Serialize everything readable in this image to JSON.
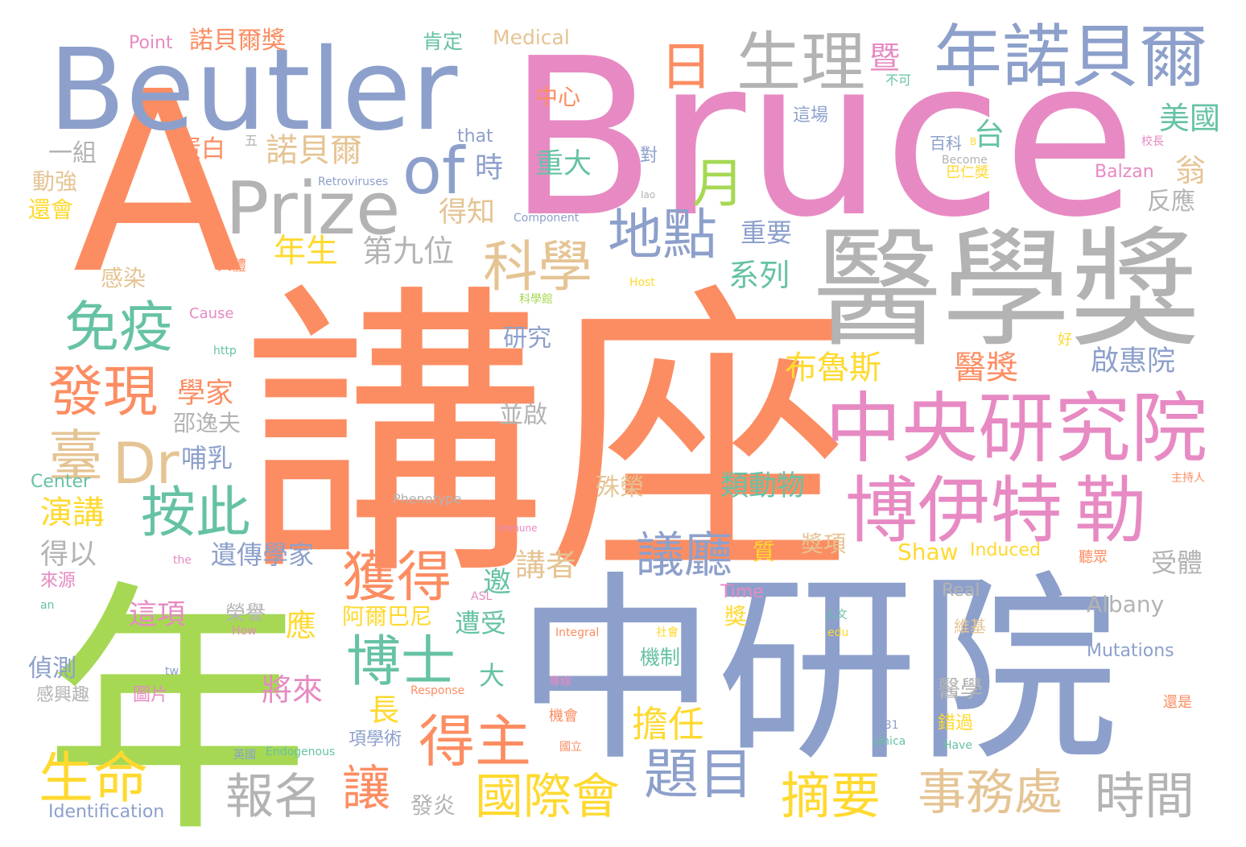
{
  "palette": {
    "orange": "#fc8d62",
    "blue": "#8da0cb",
    "pink": "#e78ac3",
    "green": "#a6d854",
    "yellow": "#ffd92f",
    "tan": "#e5c494",
    "gray": "#b3b3b3",
    "teal": "#66c2a5"
  },
  "words": [
    {
      "text": "講座",
      "color": "orange"
    },
    {
      "text": "Bruce",
      "color": "pink"
    },
    {
      "text": "中研院",
      "color": "blue"
    },
    {
      "text": "年",
      "color": "green"
    },
    {
      "text": "A",
      "color": "orange"
    },
    {
      "text": "醫學獎",
      "color": "gray"
    },
    {
      "text": "Beutler",
      "color": "blue"
    },
    {
      "text": "中央研究院",
      "color": "pink"
    },
    {
      "text": "博伊特",
      "color": "pink"
    },
    {
      "text": "勒",
      "color": "pink"
    },
    {
      "text": "年諾貝爾",
      "color": "blue"
    },
    {
      "text": "Prize",
      "color": "gray"
    },
    {
      "text": "生理",
      "color": "gray"
    },
    {
      "text": "of",
      "color": "blue"
    },
    {
      "text": "月",
      "color": "green"
    },
    {
      "text": "日",
      "color": "orange"
    },
    {
      "text": "Dr",
      "color": "tan"
    },
    {
      "text": "科學",
      "color": "tan"
    },
    {
      "text": "地點",
      "color": "blue"
    },
    {
      "text": "免疫",
      "color": "teal"
    },
    {
      "text": "發現",
      "color": "orange"
    },
    {
      "text": "臺",
      "color": "tan"
    },
    {
      "text": "按此",
      "color": "teal"
    },
    {
      "text": "獲得",
      "color": "orange"
    },
    {
      "text": "得主",
      "color": "orange"
    },
    {
      "text": "博士",
      "color": "teal"
    },
    {
      "text": "議廳",
      "color": "blue"
    },
    {
      "text": "國際會",
      "color": "yellow"
    },
    {
      "text": "題目",
      "color": "blue"
    },
    {
      "text": "摘要",
      "color": "yellow"
    },
    {
      "text": "事務處",
      "color": "tan"
    },
    {
      "text": "時間",
      "color": "gray"
    },
    {
      "text": "生命",
      "color": "yellow"
    },
    {
      "text": "報名",
      "color": "gray"
    },
    {
      "text": "讓",
      "color": "orange"
    },
    {
      "text": "擔任",
      "color": "yellow"
    },
    {
      "text": "布魯斯",
      "color": "yellow"
    },
    {
      "text": "醫獎",
      "color": "orange"
    },
    {
      "text": "啟惠院",
      "color": "blue"
    },
    {
      "text": "美國",
      "color": "teal"
    },
    {
      "text": "翁",
      "color": "tan"
    },
    {
      "text": "反應",
      "color": "gray"
    },
    {
      "text": "台",
      "color": "teal"
    },
    {
      "text": "暨",
      "color": "pink"
    },
    {
      "text": "不可",
      "color": "teal"
    },
    {
      "text": "系列",
      "color": "teal"
    },
    {
      "text": "重要",
      "color": "blue"
    },
    {
      "text": "類動物",
      "color": "teal"
    },
    {
      "text": "第九位",
      "color": "gray"
    },
    {
      "text": "年生",
      "color": "yellow"
    },
    {
      "text": "研究",
      "color": "blue"
    },
    {
      "text": "諾貝爾",
      "color": "tan"
    },
    {
      "text": "蛋白",
      "color": "orange"
    },
    {
      "text": "一組",
      "color": "gray"
    },
    {
      "text": "動強",
      "color": "tan"
    },
    {
      "text": "還會",
      "color": "yellow"
    },
    {
      "text": "感染",
      "color": "tan"
    },
    {
      "text": "學家",
      "color": "orange"
    },
    {
      "text": "邵逸夫",
      "color": "gray"
    },
    {
      "text": "哺乳",
      "color": "blue"
    },
    {
      "text": "並啟",
      "color": "gray"
    },
    {
      "text": "演講",
      "color": "yellow"
    },
    {
      "text": "得以",
      "color": "gray"
    },
    {
      "text": "遺傳學家",
      "color": "blue"
    },
    {
      "text": "邀",
      "color": "teal"
    },
    {
      "text": "講者",
      "color": "tan"
    },
    {
      "text": "應",
      "color": "yellow"
    },
    {
      "text": "這項",
      "color": "pink"
    },
    {
      "text": "偵測",
      "color": "blue"
    },
    {
      "text": "將來",
      "color": "pink"
    },
    {
      "text": "遭受",
      "color": "teal"
    },
    {
      "text": "大",
      "color": "teal"
    },
    {
      "text": "長",
      "color": "yellow"
    },
    {
      "text": "殊榮",
      "color": "tan"
    },
    {
      "text": "質",
      "color": "yellow"
    },
    {
      "text": "獎項",
      "color": "tan"
    },
    {
      "text": "受體",
      "color": "gray"
    },
    {
      "text": "Shaw",
      "color": "yellow"
    },
    {
      "text": "Induced",
      "color": "yellow"
    },
    {
      "text": "Albany",
      "color": "gray"
    },
    {
      "text": "Mutations",
      "color": "blue"
    },
    {
      "text": "阿爾巴尼",
      "color": "yellow"
    },
    {
      "text": "榮譽",
      "color": "gray"
    },
    {
      "text": "發炎",
      "color": "gray"
    },
    {
      "text": "機制",
      "color": "teal"
    },
    {
      "text": "醫學",
      "color": "gray"
    },
    {
      "text": "錯過",
      "color": "yellow"
    },
    {
      "text": "維基",
      "color": "tan"
    },
    {
      "text": "重大",
      "color": "teal"
    },
    {
      "text": "時",
      "color": "blue"
    },
    {
      "text": "得知",
      "color": "tan"
    },
    {
      "text": "中心",
      "color": "orange"
    },
    {
      "text": "肯定",
      "color": "teal"
    },
    {
      "text": "Medical",
      "color": "tan"
    },
    {
      "text": "諾貝爾獎",
      "color": "orange"
    },
    {
      "text": "Point",
      "color": "pink"
    },
    {
      "text": "這場",
      "color": "blue"
    },
    {
      "text": "百科",
      "color": "blue"
    },
    {
      "text": "巴仁獎",
      "color": "yellow"
    },
    {
      "text": "Balzan",
      "color": "pink"
    },
    {
      "text": "對",
      "color": "blue"
    },
    {
      "text": "that",
      "color": "blue"
    },
    {
      "text": "Retroviruses",
      "color": "blue"
    },
    {
      "text": "Component",
      "color": "blue"
    },
    {
      "text": "Become",
      "color": "gray"
    },
    {
      "text": "Cause",
      "color": "pink"
    },
    {
      "text": "http",
      "color": "teal"
    },
    {
      "text": "Host",
      "color": "yellow"
    },
    {
      "text": "Center",
      "color": "teal"
    },
    {
      "text": "Phenotype",
      "color": "gray"
    },
    {
      "text": "Immune",
      "color": "pink"
    },
    {
      "text": "Real",
      "color": "gray"
    },
    {
      "text": "Time",
      "color": "pink"
    },
    {
      "text": "ASL",
      "color": "pink"
    },
    {
      "text": "How",
      "color": "pink"
    },
    {
      "text": "Integral",
      "color": "orange"
    },
    {
      "text": "Response",
      "color": "orange"
    },
    {
      "text": "Identification",
      "color": "blue"
    },
    {
      "text": "Endogenous",
      "color": "teal"
    },
    {
      "text": "Have",
      "color": "teal"
    },
    {
      "text": "sinica",
      "color": "teal"
    },
    {
      "text": "edu",
      "color": "yellow"
    },
    {
      "text": "tw",
      "color": "blue"
    },
    {
      "text": "an",
      "color": "teal"
    },
    {
      "text": "the",
      "color": "pink"
    },
    {
      "text": "來源",
      "color": "pink"
    },
    {
      "text": "感興趣",
      "color": "gray"
    },
    {
      "text": "圖片",
      "color": "pink"
    },
    {
      "text": "項學術",
      "color": "blue"
    },
    {
      "text": "機會",
      "color": "orange"
    },
    {
      "text": "社會",
      "color": "yellow"
    },
    {
      "text": "人文",
      "color": "teal"
    },
    {
      "text": "聽眾",
      "color": "orange"
    },
    {
      "text": "還是",
      "color": "orange"
    },
    {
      "text": "好",
      "color": "yellow"
    },
    {
      "text": "人體",
      "color": "orange"
    },
    {
      "text": "科學館",
      "color": "green"
    },
    {
      "text": "獎",
      "color": "yellow"
    },
    {
      "text": "主持人",
      "color": "orange"
    },
    {
      "text": "B1",
      "color": "blue"
    },
    {
      "text": "國立",
      "color": "orange"
    },
    {
      "text": "專線",
      "color": "pink"
    },
    {
      "text": "英國",
      "color": "blue"
    },
    {
      "text": "Iao",
      "color": "gray"
    },
    {
      "text": "五",
      "color": "gray"
    },
    {
      "text": "校長",
      "color": "pink"
    },
    {
      "text": "B",
      "color": "yellow"
    }
  ]
}
